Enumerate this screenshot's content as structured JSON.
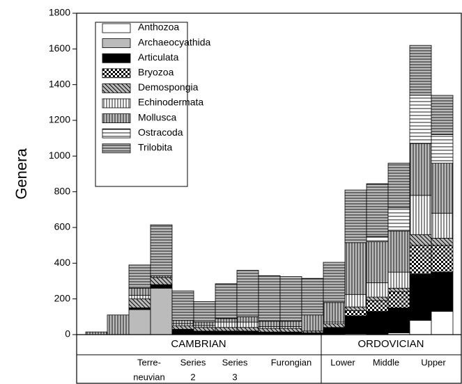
{
  "chart_data": {
    "type": "stacked-bar",
    "ylabel": "Genera",
    "ylim": [
      0,
      1800
    ],
    "yticks": [
      0,
      200,
      400,
      600,
      800,
      1000,
      1200,
      1400,
      1600,
      1800
    ],
    "categories": [
      null,
      null,
      null,
      null,
      null,
      null,
      null,
      null,
      null,
      null,
      null,
      null,
      null,
      null,
      null,
      null,
      null
    ],
    "series": [
      {
        "name": "Anthozoa",
        "pattern": "white",
        "values": [
          0,
          0,
          0,
          0,
          0,
          0,
          0,
          0,
          0,
          0,
          0,
          0,
          5,
          0,
          10,
          80,
          130
        ]
      },
      {
        "name": "Archaeocyathida",
        "pattern": "gray",
        "values": [
          0,
          0,
          140,
          260,
          0,
          0,
          0,
          0,
          0,
          0,
          0,
          0,
          0,
          0,
          0,
          0,
          0
        ]
      },
      {
        "name": "Articulata",
        "pattern": "black",
        "values": [
          0,
          0,
          10,
          20,
          30,
          20,
          20,
          20,
          15,
          15,
          10,
          40,
          100,
          130,
          140,
          260,
          220
        ]
      },
      {
        "name": "Bryozoa",
        "pattern": "checker",
        "values": [
          0,
          0,
          0,
          0,
          0,
          0,
          0,
          0,
          0,
          0,
          0,
          0,
          30,
          60,
          90,
          160,
          150
        ]
      },
      {
        "name": "Demospongia",
        "pattern": "diagonal",
        "values": [
          0,
          0,
          50,
          40,
          20,
          20,
          20,
          20,
          20,
          20,
          10,
          20,
          20,
          20,
          20,
          60,
          40
        ]
      },
      {
        "name": "Echinodermata",
        "pattern": "vlines-white",
        "values": [
          0,
          0,
          20,
          0,
          10,
          10,
          30,
          30,
          10,
          10,
          0,
          10,
          70,
          80,
          90,
          220,
          140
        ]
      },
      {
        "name": "Mollusca",
        "pattern": "vlines-gray",
        "values": [
          15,
          110,
          40,
          10,
          20,
          20,
          20,
          30,
          30,
          30,
          90,
          110,
          290,
          230,
          230,
          290,
          280
        ]
      },
      {
        "name": "Ostracoda",
        "pattern": "hlines-white",
        "values": [
          0,
          0,
          0,
          0,
          0,
          0,
          0,
          0,
          0,
          0,
          0,
          0,
          0,
          30,
          130,
          270,
          160
        ]
      },
      {
        "name": "Trilobita",
        "pattern": "hlines-gray",
        "values": [
          0,
          0,
          130,
          285,
          165,
          115,
          195,
          260,
          255,
          250,
          205,
          225,
          295,
          295,
          250,
          280,
          220
        ]
      }
    ],
    "periods": [
      "CAMBRIAN",
      "ORDOVICIAN"
    ],
    "epochs": [
      [
        "Terre-",
        "neuvian"
      ],
      [
        "Series",
        "2"
      ],
      [
        "Series",
        "3"
      ],
      [
        "Furongian"
      ],
      [
        "Lower"
      ],
      [
        "Middle"
      ],
      [
        "Upper"
      ]
    ]
  }
}
